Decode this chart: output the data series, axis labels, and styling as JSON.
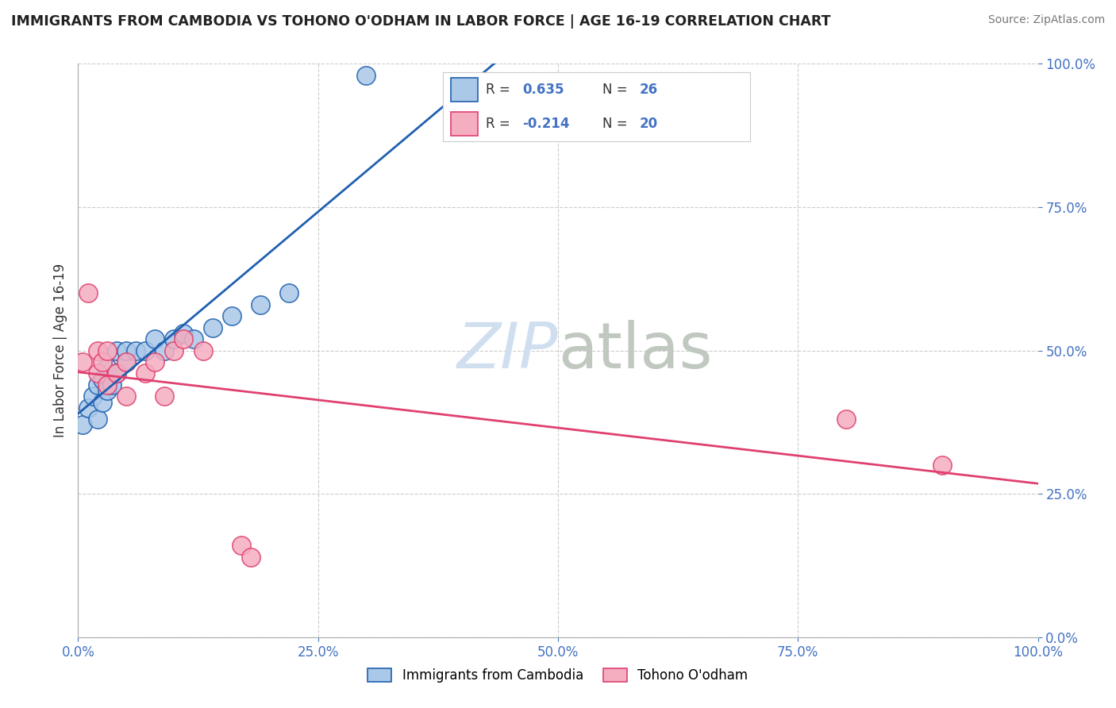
{
  "title": "IMMIGRANTS FROM CAMBODIA VS TOHONO O'ODHAM IN LABOR FORCE | AGE 16-19 CORRELATION CHART",
  "source": "Source: ZipAtlas.com",
  "ylabel": "In Labor Force | Age 16-19",
  "legend_label1": "Immigrants from Cambodia",
  "legend_label2": "Tohono O'odham",
  "r1": 0.635,
  "n1": 26,
  "r2": -0.214,
  "n2": 20,
  "color1": "#aac8e8",
  "color2": "#f5adc0",
  "line_color1": "#2060b0",
  "line_color2": "#e04070",
  "xlim": [
    0.0,
    1.0
  ],
  "ylim": [
    0.0,
    1.0
  ],
  "cambodia_x": [
    0.005,
    0.01,
    0.015,
    0.02,
    0.02,
    0.025,
    0.025,
    0.03,
    0.03,
    0.035,
    0.04,
    0.04,
    0.05,
    0.05,
    0.06,
    0.07,
    0.08,
    0.09,
    0.1,
    0.11,
    0.12,
    0.14,
    0.16,
    0.19,
    0.22,
    0.3
  ],
  "cambodia_y": [
    0.37,
    0.4,
    0.42,
    0.38,
    0.44,
    0.41,
    0.45,
    0.43,
    0.47,
    0.44,
    0.46,
    0.5,
    0.48,
    0.5,
    0.5,
    0.5,
    0.52,
    0.5,
    0.52,
    0.53,
    0.52,
    0.54,
    0.56,
    0.58,
    0.6,
    0.98
  ],
  "tohono_x": [
    0.005,
    0.01,
    0.02,
    0.02,
    0.025,
    0.03,
    0.03,
    0.04,
    0.05,
    0.05,
    0.07,
    0.08,
    0.09,
    0.1,
    0.11,
    0.13,
    0.17,
    0.18,
    0.8,
    0.9
  ],
  "tohono_y": [
    0.48,
    0.6,
    0.46,
    0.5,
    0.48,
    0.44,
    0.5,
    0.46,
    0.42,
    0.48,
    0.46,
    0.48,
    0.42,
    0.5,
    0.52,
    0.5,
    0.16,
    0.14,
    0.38,
    0.3
  ]
}
